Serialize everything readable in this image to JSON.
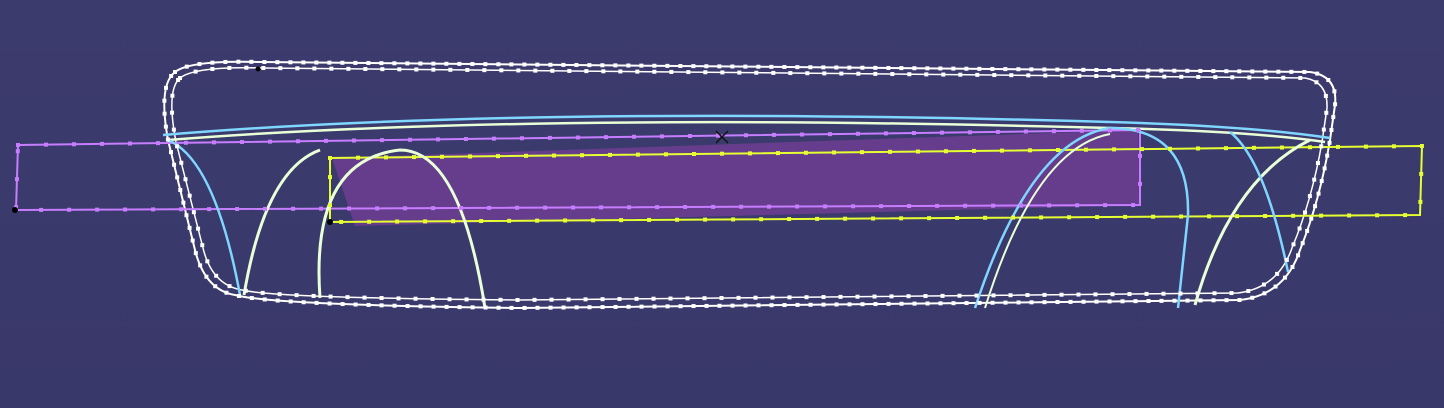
{
  "viewport": {
    "background": "#3b3a6b"
  },
  "colors": {
    "body_outline": "#ffffff",
    "inner_outline": "#bfe9ff",
    "curve_light": "#e8ffd8",
    "curve_blue": "#7fd6ff",
    "purple_rect": "#c77dff",
    "purple_fill": "#8a3fa8",
    "yellow_rect": "#e6ff33",
    "control_point": "#ffffff",
    "anchor_point": "#000000"
  },
  "icons": {
    "origin_marker": "cross-icon"
  }
}
